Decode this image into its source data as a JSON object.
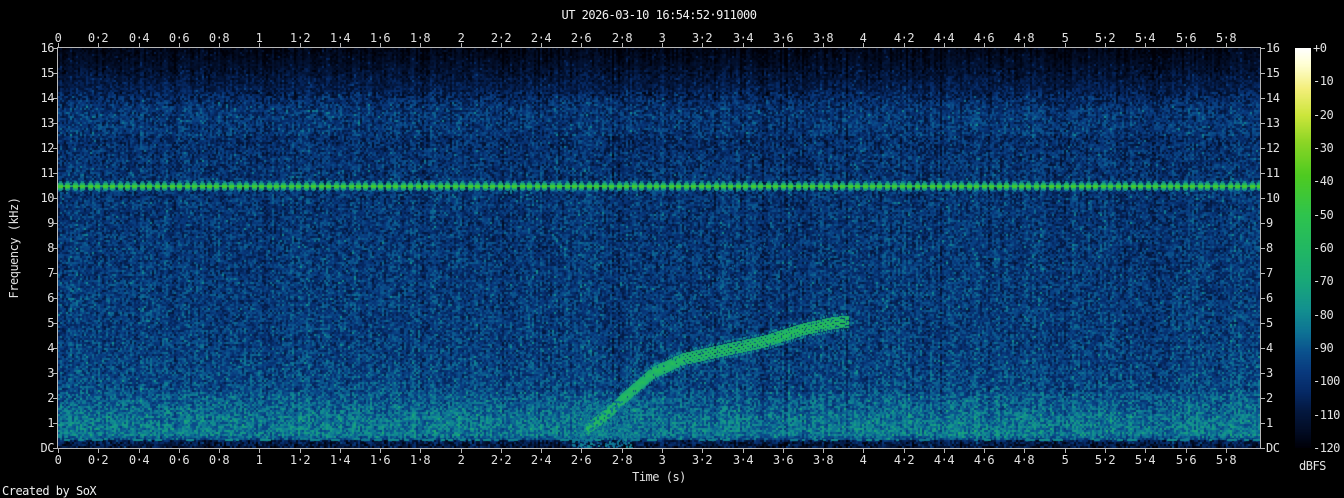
{
  "credit": "Created by SoX",
  "chart_data": {
    "type": "heatmap",
    "subtype": "audio-spectrogram",
    "title": "UT 2026-03-10 16:54:52·911000",
    "xlabel": "Time (s)",
    "ylabel": "Frequency (kHz)",
    "colorbar_label": "dBFS",
    "x_range_s": [
      0,
      5.97
    ],
    "y_range_khz": [
      0,
      16
    ],
    "db_range": [
      0,
      -120
    ],
    "grid": false,
    "x_ticks": [
      {
        "label": "0",
        "s": 0
      },
      {
        "label": "0·2",
        "s": 0.2
      },
      {
        "label": "0·4",
        "s": 0.4
      },
      {
        "label": "0·6",
        "s": 0.6
      },
      {
        "label": "0·8",
        "s": 0.8
      },
      {
        "label": "1",
        "s": 1
      },
      {
        "label": "1·2",
        "s": 1.2
      },
      {
        "label": "1·4",
        "s": 1.4
      },
      {
        "label": "1·6",
        "s": 1.6
      },
      {
        "label": "1·8",
        "s": 1.8
      },
      {
        "label": "2",
        "s": 2
      },
      {
        "label": "2·2",
        "s": 2.2
      },
      {
        "label": "2·4",
        "s": 2.4
      },
      {
        "label": "2·6",
        "s": 2.6
      },
      {
        "label": "2·8",
        "s": 2.8
      },
      {
        "label": "3",
        "s": 3
      },
      {
        "label": "3·2",
        "s": 3.2
      },
      {
        "label": "3·4",
        "s": 3.4
      },
      {
        "label": "3·6",
        "s": 3.6
      },
      {
        "label": "3·8",
        "s": 3.8
      },
      {
        "label": "4",
        "s": 4
      },
      {
        "label": "4·2",
        "s": 4.2
      },
      {
        "label": "4·4",
        "s": 4.4
      },
      {
        "label": "4·6",
        "s": 4.6
      },
      {
        "label": "4·8",
        "s": 4.8
      },
      {
        "label": "5",
        "s": 5
      },
      {
        "label": "5·2",
        "s": 5.2
      },
      {
        "label": "5·4",
        "s": 5.4
      },
      {
        "label": "5·6",
        "s": 5.6
      },
      {
        "label": "5·8",
        "s": 5.8
      }
    ],
    "y_ticks": [
      {
        "label": "16",
        "khz": 16
      },
      {
        "label": "15",
        "khz": 15
      },
      {
        "label": "14",
        "khz": 14
      },
      {
        "label": "13",
        "khz": 13
      },
      {
        "label": "12",
        "khz": 12
      },
      {
        "label": "11",
        "khz": 11
      },
      {
        "label": "10",
        "khz": 10
      },
      {
        "label": "9",
        "khz": 9
      },
      {
        "label": "8",
        "khz": 8
      },
      {
        "label": "7",
        "khz": 7
      },
      {
        "label": "6",
        "khz": 6
      },
      {
        "label": "5",
        "khz": 5
      },
      {
        "label": "4",
        "khz": 4
      },
      {
        "label": "3",
        "khz": 3
      },
      {
        "label": "2",
        "khz": 2
      },
      {
        "label": "1",
        "khz": 1
      },
      {
        "label": "DC",
        "khz": 0
      }
    ],
    "colorbar_ticks": [
      {
        "label": "+0",
        "db": 0
      },
      {
        "label": "-10",
        "db": -10
      },
      {
        "label": "-20",
        "db": -20
      },
      {
        "label": "-30",
        "db": -30
      },
      {
        "label": "-40",
        "db": -40
      },
      {
        "label": "-50",
        "db": -50
      },
      {
        "label": "-60",
        "db": -60
      },
      {
        "label": "-70",
        "db": -70
      },
      {
        "label": "-80",
        "db": -80
      },
      {
        "label": "-90",
        "db": -90
      },
      {
        "label": "-100",
        "db": -100
      },
      {
        "label": "-110",
        "db": -110
      },
      {
        "label": "-120",
        "db": -120
      }
    ],
    "colormap_stops": [
      [
        0,
        "#ffffff"
      ],
      [
        -5,
        "#ffffd2"
      ],
      [
        -12,
        "#f4ef7c"
      ],
      [
        -20,
        "#cde63c"
      ],
      [
        -28,
        "#8ed626"
      ],
      [
        -38,
        "#4fcb21"
      ],
      [
        -50,
        "#2fc44e"
      ],
      [
        -60,
        "#22b863"
      ],
      [
        -70,
        "#19a87a"
      ],
      [
        -78,
        "#13928f"
      ],
      [
        -85,
        "#0e7495"
      ],
      [
        -91,
        "#0b528e"
      ],
      [
        -97,
        "#093a7e"
      ],
      [
        -103,
        "#062a66"
      ],
      [
        -109,
        "#04183f"
      ],
      [
        -115,
        "#020c24"
      ],
      [
        -120,
        "#000007"
      ]
    ],
    "noise_bands_khz_db": [
      [
        16,
        15.2,
        -118,
        -113
      ],
      [
        15.2,
        14.2,
        -113,
        -106
      ],
      [
        14.2,
        13.6,
        -106,
        -100
      ],
      [
        13.6,
        12.5,
        -99,
        -99
      ],
      [
        12.5,
        11.4,
        -102,
        -100
      ],
      [
        11.4,
        9.4,
        -100,
        -99
      ],
      [
        9.4,
        6.5,
        -99,
        -98
      ],
      [
        6.5,
        4.2,
        -98,
        -97
      ],
      [
        4.2,
        2.2,
        -97,
        -94
      ],
      [
        2.2,
        1.4,
        -92,
        -87
      ],
      [
        1.4,
        0.5,
        -86,
        -83
      ],
      [
        0.5,
        0.3,
        -85,
        -94
      ],
      [
        0.3,
        0,
        -106,
        -112
      ]
    ],
    "features": {
      "pulsed_tone": {
        "freq_khz": 10.47,
        "level_db": -42,
        "pulse_period_s": 0.037,
        "start_s": 0,
        "end_s": 5.97
      },
      "chirp": {
        "level_db": -59,
        "points_s_khz": [
          [
            2.62,
            0.75
          ],
          [
            2.72,
            1.35
          ],
          [
            2.82,
            2.1
          ],
          [
            2.95,
            3.0
          ],
          [
            3.1,
            3.55
          ],
          [
            3.3,
            3.9
          ],
          [
            3.5,
            4.25
          ],
          [
            3.7,
            4.75
          ],
          [
            3.85,
            5.0
          ],
          [
            3.92,
            5.05
          ]
        ]
      },
      "chirp_harmonic": {
        "level_db": -88,
        "points_s_khz": [
          [
            2.72,
            1.9
          ],
          [
            2.95,
            4.3
          ],
          [
            3.15,
            6.0
          ],
          [
            3.4,
            7.6
          ],
          [
            3.65,
            8.9
          ]
        ]
      },
      "onset_burst": {
        "time_s": [
          2.55,
          2.85
        ],
        "freq_khz": [
          0,
          1.9
        ],
        "level_db": -84
      },
      "low_dashed_line": {
        "freq_khz": 0.38,
        "level_db": -80
      }
    }
  }
}
